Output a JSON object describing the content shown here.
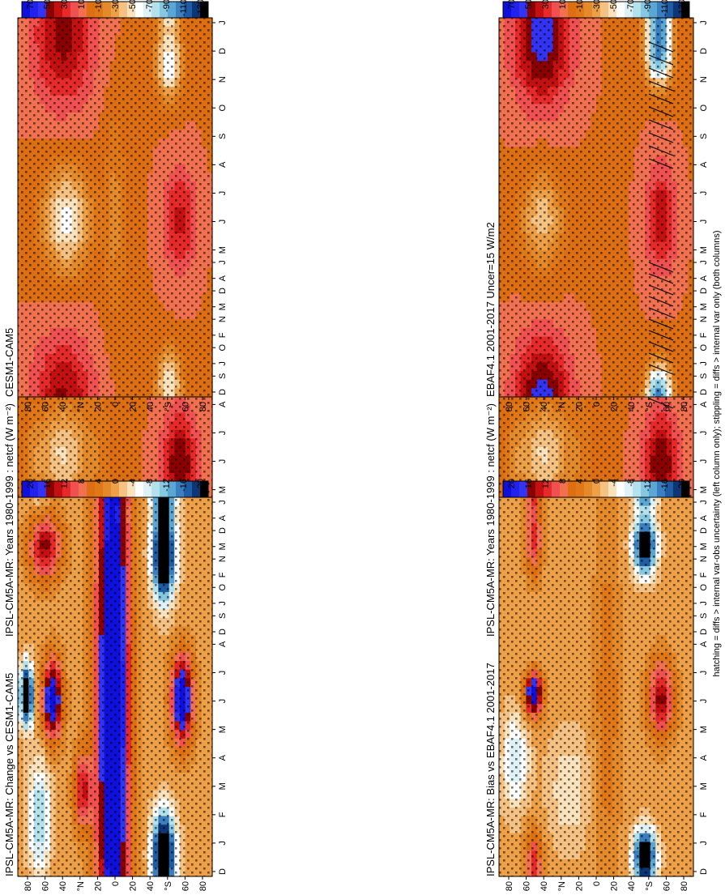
{
  "figure": {
    "footnote": "hatching = diffs > internal var-obs uncertainty (left column only); stippling = diffs > internal var only (both columns)"
  },
  "chart_data": [
    {
      "type": "heatmap",
      "title": "IPSL-CM5A-MR: Years 1980-1999 : netcf (W m⁻²)",
      "x_ticks": [
        "D",
        "J",
        "F",
        "M",
        "A",
        "M",
        "J",
        "J",
        "A",
        "S",
        "O",
        "N",
        "D",
        "J"
      ],
      "y_ticks": [
        "80",
        "60",
        "40",
        "°N",
        "20",
        "0",
        "20",
        "40",
        "°S",
        "60",
        "80"
      ],
      "ylim": [
        -90,
        90
      ],
      "colorbar_ticks": [
        "70",
        "50",
        "30",
        "10",
        "-10",
        "-30",
        "-50",
        "-70",
        "-90",
        "-110",
        "-130"
      ],
      "colorbar_colors": [
        "#1010dd",
        "#2222ee",
        "#3333f2",
        "#8b0000",
        "#c41010",
        "#e62a2a",
        "#f05050",
        "#f07050",
        "#dd6e12",
        "#e07818",
        "#e58a2a",
        "#eda048",
        "#f5c284",
        "#fae2bc",
        "#ffffff",
        "#def2f6",
        "#b4e2ec",
        "#86c8e2",
        "#5aa6d4",
        "#3a7fc0",
        "#1e5ca4",
        "#0e3676",
        "#000000"
      ],
      "hatching": true,
      "stippling": true,
      "contour_features": [
        {
          "lat": 50,
          "day": 15,
          "value": 40,
          "lat_w": 28,
          "day_w": 60
        },
        {
          "lat": 50,
          "day": 350,
          "value": 40,
          "lat_w": 28,
          "day_w": 60
        },
        {
          "lat": 48,
          "day": 190,
          "value": -45,
          "lat_w": 22,
          "day_w": 55
        },
        {
          "lat": 15,
          "day": 190,
          "value": -12,
          "lat_w": 15,
          "day_w": 90
        },
        {
          "lat": -60,
          "day": 180,
          "value": 45,
          "lat_w": 16,
          "day_w": 55
        },
        {
          "lat": -55,
          "day": 10,
          "value": -135,
          "lat_w": 15,
          "day_w": 30
        },
        {
          "lat": -55,
          "day": 355,
          "value": -135,
          "lat_w": 15,
          "day_w": 30
        },
        {
          "lat": -20,
          "day": 20,
          "value": -30,
          "lat_w": 12,
          "day_w": 50
        },
        {
          "lat": 75,
          "day": 180,
          "value": -15,
          "lat_w": 10,
          "day_w": 60
        }
      ]
    },
    {
      "type": "heatmap",
      "title": "IPSL-CM5A-MR: Years 1980-1999 : netcf (W m⁻²)",
      "x_ticks": [
        "D",
        "J",
        "F",
        "M",
        "A",
        "M",
        "J",
        "J",
        "A",
        "S",
        "O",
        "N",
        "D",
        "J"
      ],
      "y_ticks": [
        "80",
        "60",
        "40",
        "°N",
        "20",
        "0",
        "20",
        "40",
        "°S",
        "60",
        "80"
      ],
      "ylim": [
        -90,
        90
      ],
      "colorbar_ticks": [
        "70",
        "50",
        "30",
        "10",
        "-10",
        "-30",
        "-50",
        "-70",
        "-90",
        "-110",
        "-130"
      ],
      "colorbar_colors": [
        "#1010dd",
        "#2222ee",
        "#3333f2",
        "#8b0000",
        "#c41010",
        "#e62a2a",
        "#f05050",
        "#f07050",
        "#dd6e12",
        "#e07818",
        "#e58a2a",
        "#eda048",
        "#f5c284",
        "#fae2bc",
        "#ffffff",
        "#def2f6",
        "#b4e2ec",
        "#86c8e2",
        "#5aa6d4",
        "#3a7fc0",
        "#1e5ca4",
        "#0e3676",
        "#000000"
      ],
      "hatching": false,
      "stippling": true,
      "contour_features": [
        {
          "lat": 50,
          "day": 15,
          "value": 40,
          "lat_w": 28,
          "day_w": 60
        },
        {
          "lat": 50,
          "day": 350,
          "value": 40,
          "lat_w": 28,
          "day_w": 60
        },
        {
          "lat": 48,
          "day": 190,
          "value": -45,
          "lat_w": 22,
          "day_w": 55
        },
        {
          "lat": 15,
          "day": 190,
          "value": -12,
          "lat_w": 15,
          "day_w": 90
        },
        {
          "lat": -60,
          "day": 180,
          "value": 45,
          "lat_w": 16,
          "day_w": 55
        },
        {
          "lat": -55,
          "day": 10,
          "value": -135,
          "lat_w": 15,
          "day_w": 30
        },
        {
          "lat": -55,
          "day": 355,
          "value": -135,
          "lat_w": 15,
          "day_w": 30
        },
        {
          "lat": -20,
          "day": 20,
          "value": -30,
          "lat_w": 12,
          "day_w": 50
        },
        {
          "lat": 75,
          "day": 180,
          "value": -15,
          "lat_w": 10,
          "day_w": 60
        }
      ]
    },
    {
      "type": "heatmap",
      "title": "EBAF4.1 2001-2017 Uncer=15 W/m2",
      "x_ticks": [
        "D",
        "J",
        "F",
        "M",
        "A",
        "M",
        "J",
        "J",
        "A",
        "S",
        "O",
        "N",
        "D",
        "J"
      ],
      "y_ticks": [
        "80",
        "60",
        "40",
        "°N",
        "20",
        "0",
        "20",
        "40",
        "°S",
        "60",
        "80"
      ],
      "ylim": [
        -90,
        90
      ],
      "colorbar_ticks": [
        "70",
        "50",
        "30",
        "10",
        "-10",
        "-30",
        "-50",
        "-70",
        "-90",
        "-110",
        "-130"
      ],
      "colorbar_colors": [
        "#1010dd",
        "#2222ee",
        "#3333f2",
        "#8b0000",
        "#c41010",
        "#e62a2a",
        "#f05050",
        "#f07050",
        "#dd6e12",
        "#e07818",
        "#e58a2a",
        "#eda048",
        "#f5c284",
        "#fae2bc",
        "#ffffff",
        "#def2f6",
        "#b4e2ec",
        "#86c8e2",
        "#5aa6d4",
        "#3a7fc0",
        "#1e5ca4",
        "#0e3676",
        "#000000"
      ],
      "hatching": true,
      "stippling": true,
      "contour_features": [
        {
          "lat": 50,
          "day": 15,
          "value": 35,
          "lat_w": 26,
          "day_w": 55
        },
        {
          "lat": 50,
          "day": 350,
          "value": 35,
          "lat_w": 26,
          "day_w": 55
        },
        {
          "lat": 50,
          "day": 185,
          "value": -40,
          "lat_w": 20,
          "day_w": 50
        },
        {
          "lat": -60,
          "day": 185,
          "value": 35,
          "lat_w": 14,
          "day_w": 55
        },
        {
          "lat": -58,
          "day": 5,
          "value": -90,
          "lat_w": 12,
          "day_w": 30
        },
        {
          "lat": -58,
          "day": 355,
          "value": -90,
          "lat_w": 12,
          "day_w": 30
        }
      ]
    },
    {
      "type": "heatmap",
      "title": "CESM1-CAM5",
      "x_ticks": [
        "D",
        "J",
        "F",
        "M",
        "A",
        "M",
        "J",
        "J",
        "A",
        "S",
        "O",
        "N",
        "D",
        "J"
      ],
      "y_ticks": [
        "80",
        "60",
        "40",
        "°N",
        "20",
        "0",
        "20",
        "40",
        "°S",
        "60",
        "80"
      ],
      "ylim": [
        -90,
        90
      ],
      "colorbar_ticks": [
        "70",
        "50",
        "30",
        "10",
        "-10",
        "-30",
        "-50",
        "-70",
        "-90",
        "-110",
        "-130"
      ],
      "colorbar_colors": [
        "#1010dd",
        "#2222ee",
        "#3333f2",
        "#8b0000",
        "#c41010",
        "#e62a2a",
        "#f05050",
        "#f07050",
        "#dd6e12",
        "#e07818",
        "#e58a2a",
        "#eda048",
        "#f5c284",
        "#fae2bc",
        "#ffffff",
        "#def2f6",
        "#b4e2ec",
        "#86c8e2",
        "#5aa6d4",
        "#3a7fc0",
        "#1e5ca4",
        "#0e3676",
        "#000000"
      ],
      "hatching": false,
      "stippling": true,
      "contour_features": [
        {
          "lat": 48,
          "day": 15,
          "value": 25,
          "lat_w": 28,
          "day_w": 60
        },
        {
          "lat": 48,
          "day": 350,
          "value": 25,
          "lat_w": 28,
          "day_w": 60
        },
        {
          "lat": 45,
          "day": 185,
          "value": -55,
          "lat_w": 22,
          "day_w": 55
        },
        {
          "lat": 0,
          "day": 190,
          "value": -20,
          "lat_w": 10,
          "day_w": 110
        },
        {
          "lat": -60,
          "day": 185,
          "value": 30,
          "lat_w": 15,
          "day_w": 55
        },
        {
          "lat": -50,
          "day": 15,
          "value": -50,
          "lat_w": 12,
          "day_w": 35
        },
        {
          "lat": -50,
          "day": 345,
          "value": -60,
          "lat_w": 12,
          "day_w": 35
        }
      ]
    },
    {
      "type": "heatmap",
      "title": "IPSL-CM5A-MR: Bias vs EBAF4.1 2001-2017",
      "x_ticks": [
        "D",
        "J",
        "F",
        "M",
        "A",
        "M",
        "J",
        "J",
        "A",
        "S",
        "O",
        "N",
        "D",
        "J"
      ],
      "y_ticks": [
        "80",
        "60",
        "40",
        "°N",
        "20",
        "0",
        "20",
        "40",
        "°S",
        "60",
        "80"
      ],
      "ylim": [
        -90,
        90
      ],
      "colorbar_ticks": [
        "20",
        "16",
        "12",
        "8",
        "4",
        "0",
        "-4",
        "-8",
        "-12",
        "-16",
        "-20"
      ],
      "colorbar_colors": [
        "#1010dd",
        "#2222ee",
        "#3333f2",
        "#8b0000",
        "#c41010",
        "#e62a2a",
        "#f05050",
        "#f07050",
        "#dd6e12",
        "#e07818",
        "#e58a2a",
        "#eda048",
        "#f5c284",
        "#fae2bc",
        "#ffffff",
        "#def2f6",
        "#b4e2ec",
        "#86c8e2",
        "#5aa6d4",
        "#3a7fc0",
        "#1e5ca4",
        "#0e3676",
        "#000000"
      ],
      "hatching": false,
      "stippling": true,
      "contour_features": [
        {
          "lat": 58,
          "day": 190,
          "value": 22,
          "lat_w": 8,
          "day_w": 22
        },
        {
          "lat": 58,
          "day": 350,
          "value": 10,
          "lat_w": 8,
          "day_w": 35
        },
        {
          "lat": 58,
          "day": 15,
          "value": 10,
          "lat_w": 8,
          "day_w": 35
        },
        {
          "lat": 75,
          "day": 120,
          "value": -8,
          "lat_w": 12,
          "day_w": 50
        },
        {
          "lat": 25,
          "day": 90,
          "value": -4,
          "lat_w": 20,
          "day_w": 60
        },
        {
          "lat": -45,
          "day": 20,
          "value": -24,
          "lat_w": 10,
          "day_w": 28
        },
        {
          "lat": -45,
          "day": 345,
          "value": -24,
          "lat_w": 10,
          "day_w": 28
        },
        {
          "lat": -60,
          "day": 185,
          "value": 14,
          "lat_w": 12,
          "day_w": 40
        },
        {
          "lat": -10,
          "day": 180,
          "value": 4,
          "lat_w": 12,
          "day_w": 200
        }
      ]
    },
    {
      "type": "heatmap",
      "title": "IPSL-CM5A-MR: Change vs CESM1-CAM5",
      "x_ticks": [
        "D",
        "J",
        "F",
        "M",
        "A",
        "M",
        "J",
        "J",
        "A",
        "S",
        "O",
        "N",
        "D",
        "J"
      ],
      "y_ticks": [
        "80",
        "60",
        "40",
        "°N",
        "20",
        "0",
        "20",
        "40",
        "°S",
        "60",
        "80"
      ],
      "ylim": [
        -90,
        90
      ],
      "colorbar_ticks": [
        "20",
        "16",
        "12",
        "8",
        "4",
        "0",
        "-4",
        "-8",
        "-12",
        "-16",
        "-20"
      ],
      "colorbar_colors": [
        "#1010dd",
        "#2222ee",
        "#3333f2",
        "#8b0000",
        "#c41010",
        "#e62a2a",
        "#f05050",
        "#f07050",
        "#dd6e12",
        "#e07818",
        "#e58a2a",
        "#eda048",
        "#f5c284",
        "#fae2bc",
        "#ffffff",
        "#def2f6",
        "#b4e2ec",
        "#86c8e2",
        "#5aa6d4",
        "#3a7fc0",
        "#1e5ca4",
        "#0e3676",
        "#000000"
      ],
      "hatching": false,
      "stippling": true,
      "contour_features": [
        {
          "lat": 2,
          "day": 180,
          "value": 25,
          "lat_w": 15,
          "day_w": 400
        },
        {
          "lat": 58,
          "day": 185,
          "value": 22,
          "lat_w": 9,
          "day_w": 40
        },
        {
          "lat": 82,
          "day": 190,
          "value": -26,
          "lat_w": 6,
          "day_w": 30
        },
        {
          "lat": 70,
          "day": 60,
          "value": -10,
          "lat_w": 10,
          "day_w": 60
        },
        {
          "lat": 65,
          "day": 345,
          "value": 14,
          "lat_w": 15,
          "day_w": 35
        },
        {
          "lat": -45,
          "day": 25,
          "value": -28,
          "lat_w": 10,
          "day_w": 40
        },
        {
          "lat": -45,
          "day": 335,
          "value": -28,
          "lat_w": 10,
          "day_w": 45
        },
        {
          "lat": -62,
          "day": 185,
          "value": 22,
          "lat_w": 10,
          "day_w": 45
        },
        {
          "lat": 30,
          "day": 90,
          "value": 12,
          "lat_w": 8,
          "day_w": 40
        }
      ]
    }
  ]
}
